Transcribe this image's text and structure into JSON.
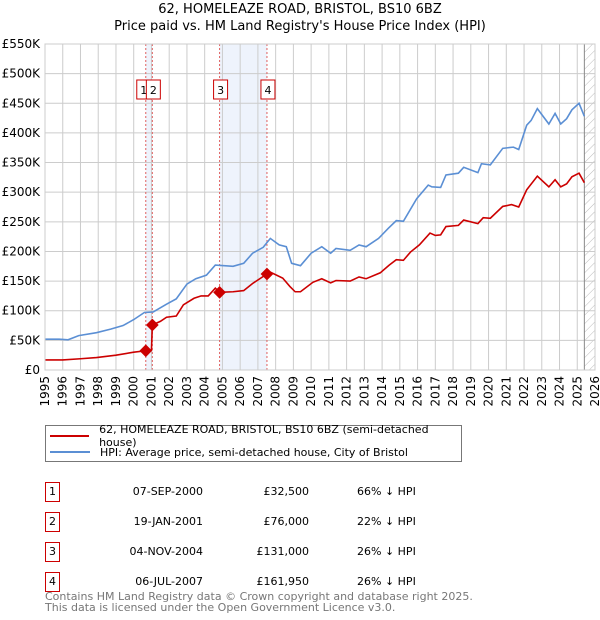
{
  "title": "62, HOMELEAZE ROAD, BRISTOL, BS10 6BZ",
  "subtitle": "Price paid vs. HM Land Registry's House Price Index (HPI)",
  "colors": {
    "property": "#cc0000",
    "hpi": "#5b8fd4",
    "grid": "#cccccc",
    "shade": "#eef3fc"
  },
  "chart_data": {
    "type": "line",
    "title": "62, HOMELEAZE ROAD, BRISTOL, BS10 6BZ — Price paid vs. HM Land Registry's House Price Index (HPI)",
    "xlim": [
      1995,
      2026
    ],
    "ylim": [
      0,
      550000
    ],
    "y_ticks": [
      {
        "v": 0,
        "label": "£0"
      },
      {
        "v": 50000,
        "label": "£50K"
      },
      {
        "v": 100000,
        "label": "£100K"
      },
      {
        "v": 150000,
        "label": "£150K"
      },
      {
        "v": 200000,
        "label": "£200K"
      },
      {
        "v": 250000,
        "label": "£250K"
      },
      {
        "v": 300000,
        "label": "£300K"
      },
      {
        "v": 350000,
        "label": "£350K"
      },
      {
        "v": 400000,
        "label": "£400K"
      },
      {
        "v": 450000,
        "label": "£450K"
      },
      {
        "v": 500000,
        "label": "£500K"
      },
      {
        "v": 550000,
        "label": "£550K"
      }
    ],
    "x_ticks": [
      "1995",
      "1996",
      "1997",
      "1998",
      "1999",
      "2000",
      "2001",
      "2002",
      "2003",
      "2004",
      "2005",
      "2006",
      "2007",
      "2008",
      "2009",
      "2010",
      "2011",
      "2012",
      "2013",
      "2014",
      "2015",
      "2016",
      "2017",
      "2018",
      "2019",
      "2020",
      "2021",
      "2022",
      "2023",
      "2024",
      "2025",
      "2026"
    ],
    "shaded_ranges": [
      [
        2000.68,
        2001.05
      ],
      [
        2004.84,
        2007.51
      ]
    ],
    "hatched_from": 2025.4,
    "series": [
      {
        "name": "62, HOMELEAZE ROAD, BRISTOL, BS10 6BZ (semi-detached house)",
        "color": "#cc0000",
        "points": [
          [
            1995,
            17000
          ],
          [
            1996,
            17000
          ],
          [
            1997,
            19000
          ],
          [
            1997.9,
            21000
          ],
          [
            1999,
            25000
          ],
          [
            2000,
            30000
          ],
          [
            2000.68,
            32500
          ],
          [
            2001.0,
            33000
          ],
          [
            2001.05,
            76000
          ],
          [
            2001.5,
            82000
          ],
          [
            2001.85,
            89000
          ],
          [
            2002.4,
            91000
          ],
          [
            2002.8,
            110000
          ],
          [
            2003.4,
            121000
          ],
          [
            2003.8,
            125000
          ],
          [
            2004.2,
            125000
          ],
          [
            2004.6,
            138000
          ],
          [
            2004.84,
            131000
          ],
          [
            2005.6,
            132000
          ],
          [
            2006.2,
            134000
          ],
          [
            2006.7,
            146000
          ],
          [
            2007.51,
            161950
          ],
          [
            2007.7,
            165000
          ],
          [
            2008.4,
            155000
          ],
          [
            2008.8,
            141000
          ],
          [
            2009.1,
            132000
          ],
          [
            2009.4,
            132000
          ],
          [
            2010.1,
            148000
          ],
          [
            2010.6,
            154000
          ],
          [
            2011.1,
            147000
          ],
          [
            2011.4,
            151000
          ],
          [
            2012.2,
            150000
          ],
          [
            2012.7,
            157000
          ],
          [
            2013.1,
            154000
          ],
          [
            2013.9,
            164000
          ],
          [
            2014.4,
            177000
          ],
          [
            2014.8,
            186000
          ],
          [
            2015.2,
            185000
          ],
          [
            2015.6,
            199000
          ],
          [
            2016.1,
            211000
          ],
          [
            2016.7,
            231000
          ],
          [
            2017.0,
            227000
          ],
          [
            2017.3,
            228000
          ],
          [
            2017.6,
            242000
          ],
          [
            2018.3,
            244000
          ],
          [
            2018.6,
            253000
          ],
          [
            2019.4,
            247000
          ],
          [
            2019.7,
            257000
          ],
          [
            2020.1,
            256000
          ],
          [
            2020.8,
            276000
          ],
          [
            2021.3,
            279000
          ],
          [
            2021.7,
            275000
          ],
          [
            2022.15,
            304000
          ],
          [
            2022.75,
            327000
          ],
          [
            2023.4,
            309000
          ],
          [
            2023.75,
            321000
          ],
          [
            2024.07,
            309000
          ],
          [
            2024.4,
            314000
          ],
          [
            2024.7,
            326000
          ],
          [
            2025.1,
            332000
          ],
          [
            2025.4,
            316000
          ]
        ]
      },
      {
        "name": "HPI: Average price, semi-detached house, City of Bristol",
        "color": "#5b8fd4",
        "points": [
          [
            1995,
            52000
          ],
          [
            1995.8,
            52000
          ],
          [
            1996.3,
            51000
          ],
          [
            1996.9,
            58000
          ],
          [
            1997.9,
            63000
          ],
          [
            1998.7,
            69000
          ],
          [
            1999.4,
            75000
          ],
          [
            2000,
            85000
          ],
          [
            2000.6,
            97000
          ],
          [
            2001.1,
            98000
          ],
          [
            2001.85,
            111000
          ],
          [
            2002.4,
            120000
          ],
          [
            2003,
            145000
          ],
          [
            2003.5,
            154000
          ],
          [
            2004.1,
            160000
          ],
          [
            2004.6,
            177000
          ],
          [
            2005.6,
            175000
          ],
          [
            2006.2,
            180000
          ],
          [
            2006.7,
            197000
          ],
          [
            2007.3,
            207000
          ],
          [
            2007.7,
            222000
          ],
          [
            2008.2,
            211000
          ],
          [
            2008.6,
            208000
          ],
          [
            2008.9,
            180000
          ],
          [
            2009.4,
            176000
          ],
          [
            2010,
            197000
          ],
          [
            2010.6,
            208000
          ],
          [
            2011.1,
            197000
          ],
          [
            2011.4,
            205000
          ],
          [
            2012.2,
            202000
          ],
          [
            2012.7,
            211000
          ],
          [
            2013.1,
            208000
          ],
          [
            2013.8,
            222000
          ],
          [
            2014.35,
            239000
          ],
          [
            2014.8,
            252000
          ],
          [
            2015.2,
            251000
          ],
          [
            2015.95,
            289000
          ],
          [
            2016.6,
            312000
          ],
          [
            2016.8,
            309000
          ],
          [
            2017.3,
            308000
          ],
          [
            2017.6,
            329000
          ],
          [
            2018.3,
            332000
          ],
          [
            2018.6,
            342000
          ],
          [
            2019.4,
            333000
          ],
          [
            2019.6,
            348000
          ],
          [
            2020.1,
            346000
          ],
          [
            2020.8,
            374000
          ],
          [
            2021.4,
            376000
          ],
          [
            2021.7,
            372000
          ],
          [
            2022.15,
            413000
          ],
          [
            2022.4,
            421000
          ],
          [
            2022.75,
            441000
          ],
          [
            2023.4,
            415000
          ],
          [
            2023.75,
            433000
          ],
          [
            2024.07,
            415000
          ],
          [
            2024.4,
            424000
          ],
          [
            2024.7,
            439000
          ],
          [
            2025.1,
            450000
          ],
          [
            2025.4,
            428000
          ]
        ]
      }
    ],
    "sales": [
      {
        "n": "1",
        "x": 2000.68,
        "y": 32500
      },
      {
        "n": "2",
        "x": 2001.05,
        "y": 76000
      },
      {
        "n": "3",
        "x": 2004.84,
        "y": 131000
      },
      {
        "n": "4",
        "x": 2007.51,
        "y": 161950
      }
    ]
  },
  "legend": {
    "property": "62, HOMELEAZE ROAD, BRISTOL, BS10 6BZ (semi-detached house)",
    "hpi": "HPI: Average price, semi-detached house, City of Bristol"
  },
  "transactions": [
    {
      "n": "1",
      "date": "07-SEP-2000",
      "price": "£32,500",
      "hpi": "66% ↓ HPI"
    },
    {
      "n": "2",
      "date": "19-JAN-2001",
      "price": "£76,000",
      "hpi": "22% ↓ HPI"
    },
    {
      "n": "3",
      "date": "04-NOV-2004",
      "price": "£131,000",
      "hpi": "26% ↓ HPI"
    },
    {
      "n": "4",
      "date": "06-JUL-2007",
      "price": "£161,950",
      "hpi": "26% ↓ HPI"
    }
  ],
  "footer": {
    "line1": "Contains HM Land Registry data © Crown copyright and database right 2025.",
    "line2": "This data is licensed under the Open Government Licence v3.0."
  }
}
